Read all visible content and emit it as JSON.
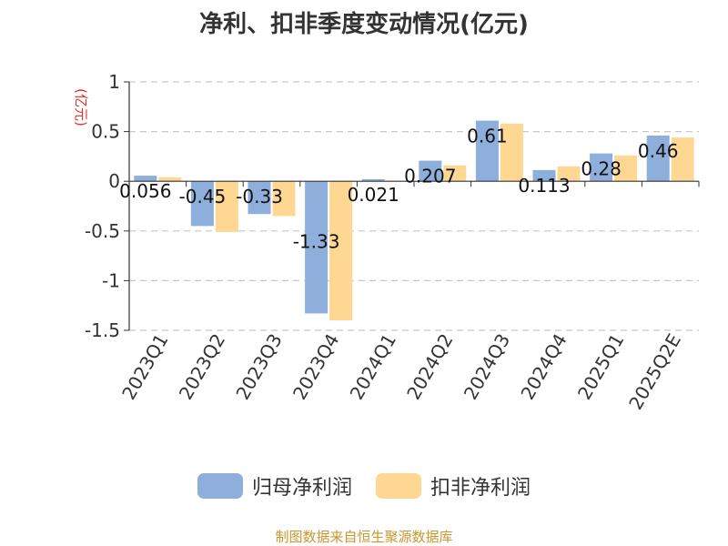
{
  "title": "净利、扣非季度变动情况(亿元)",
  "source": "制图数据来自恒生聚源数据库",
  "colors": {
    "series_1": "#8eaedb",
    "series_2": "#fed793",
    "unit_label": "#e0302a",
    "source": "#c8962d"
  },
  "chart_data": {
    "type": "bar",
    "title": "净利、扣非季度变动情况(亿元)",
    "ylabel": "(亿元)",
    "ylim": [
      -1.5,
      1
    ],
    "yticks": [
      1,
      0.5,
      0,
      -0.5,
      -1,
      -1.5
    ],
    "ytick_labels": [
      "1",
      "0.5",
      "0",
      "-0.5",
      "-1",
      "-1.5"
    ],
    "grid": true,
    "legend_position": "bottom",
    "categories": [
      "2023Q1",
      "2023Q2",
      "2023Q3",
      "2023Q4",
      "2024Q1",
      "2024Q2",
      "2024Q3",
      "2024Q4",
      "2025Q1",
      "2025Q2E"
    ],
    "series": [
      {
        "name": "归母净利润",
        "values": [
          0.056,
          -0.45,
          -0.33,
          -1.33,
          0.021,
          0.207,
          0.61,
          0.113,
          0.28,
          0.46
        ],
        "labels": [
          "0.056",
          "-0.45",
          "-0.33",
          "-1.33",
          "0.021",
          "0.207",
          "0.61",
          "0.113",
          "0.28",
          "0.46"
        ]
      },
      {
        "name": "扣非净利润",
        "values": [
          0.04,
          -0.51,
          -0.35,
          -1.4,
          0.0,
          0.16,
          0.58,
          0.15,
          0.26,
          0.44
        ]
      }
    ]
  }
}
